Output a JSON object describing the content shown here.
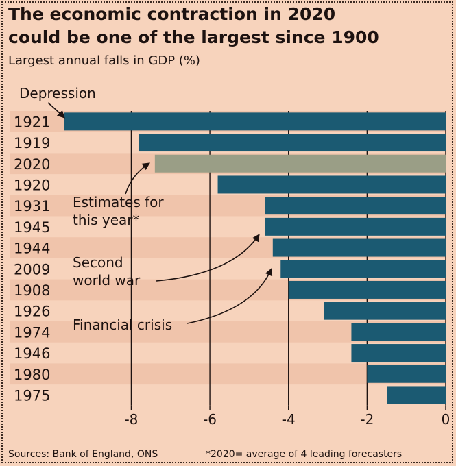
{
  "title_line1": "The economic contraction in 2020",
  "title_line2": "could be one of the largest since 1900",
  "subtitle": "Largest annual falls in GDP (%)",
  "footer": {
    "source": "Sources: Bank of England, ONS",
    "note": "*2020= average of 4 leading forecasters"
  },
  "colors": {
    "bar": "#1b5a72",
    "highlight": "#9a9e86",
    "band": "#f0c4ab",
    "background": "#f7d3bc",
    "text": "#1d1210"
  },
  "annotations": {
    "depression": "Depression",
    "estimates_line1": "Estimates for",
    "estimates_line2": "this year*",
    "ww2_line1": "Second",
    "ww2_line2": "world war",
    "financial": "Financial crisis"
  },
  "chart_data": {
    "type": "bar",
    "orientation": "horizontal",
    "title": "The economic contraction in 2020 could be one of the largest since 1900",
    "subtitle": "Largest annual falls in GDP (%)",
    "categories": [
      "1921",
      "1919",
      "2020",
      "1920",
      "1931",
      "1945",
      "1944",
      "2009",
      "1908",
      "1926",
      "1974",
      "1946",
      "1980",
      "1975"
    ],
    "values": [
      -9.7,
      -7.8,
      -7.4,
      -5.8,
      -4.6,
      -4.6,
      -4.4,
      -4.2,
      -4.0,
      -3.1,
      -2.4,
      -2.4,
      -2.0,
      -1.5
    ],
    "highlight": [
      "2020"
    ],
    "xlim": [
      -9.7,
      0
    ],
    "xticks": [
      -8,
      -6,
      -4,
      -2,
      0
    ],
    "xtick_labels": [
      "-8",
      "-6",
      "-4",
      "-2",
      "0"
    ],
    "grid": true,
    "xlabel": "",
    "ylabel": ""
  }
}
